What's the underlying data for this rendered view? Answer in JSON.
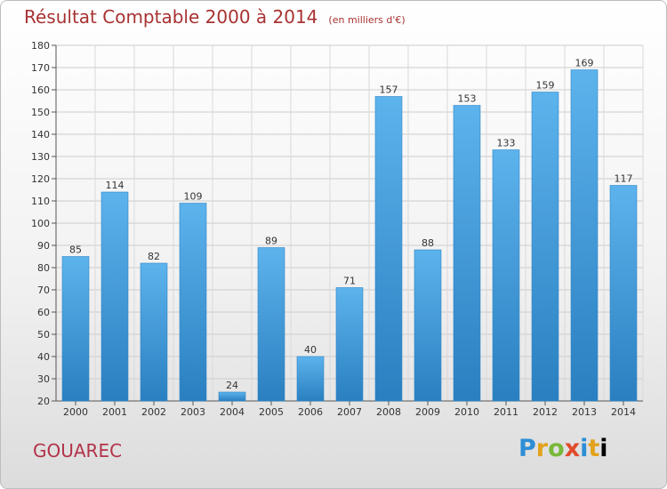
{
  "header": {
    "title": "Résultat Comptable 2000 à 2014",
    "unit": "(en milliers d'€)"
  },
  "footer": {
    "commune": "GOUAREC",
    "logo_letters": [
      "P",
      "r",
      "o",
      "x",
      "i",
      "t",
      "i"
    ]
  },
  "colors": {
    "bar": "#3d9ee0",
    "bar_light": "#5db3ec",
    "bar_dark": "#2a7fc0",
    "title": "#a83232",
    "commune": "#b2334a",
    "grid": "#cccccc"
  },
  "chart_data": {
    "type": "bar",
    "categories": [
      "2000",
      "2001",
      "2002",
      "2003",
      "2004",
      "2005",
      "2006",
      "2007",
      "2008",
      "2009",
      "2010",
      "2011",
      "2012",
      "2013",
      "2014"
    ],
    "values": [
      85,
      114,
      82,
      109,
      24,
      89,
      40,
      71,
      157,
      88,
      153,
      133,
      159,
      169,
      117
    ],
    "title": "Résultat Comptable 2000 à 2014",
    "subtitle": "(en milliers d'€)",
    "ylim": [
      20,
      180
    ],
    "yticks": [
      20,
      30,
      40,
      50,
      60,
      70,
      80,
      90,
      100,
      110,
      120,
      130,
      140,
      150,
      160,
      170,
      180
    ],
    "grid": true,
    "legend": "none"
  }
}
